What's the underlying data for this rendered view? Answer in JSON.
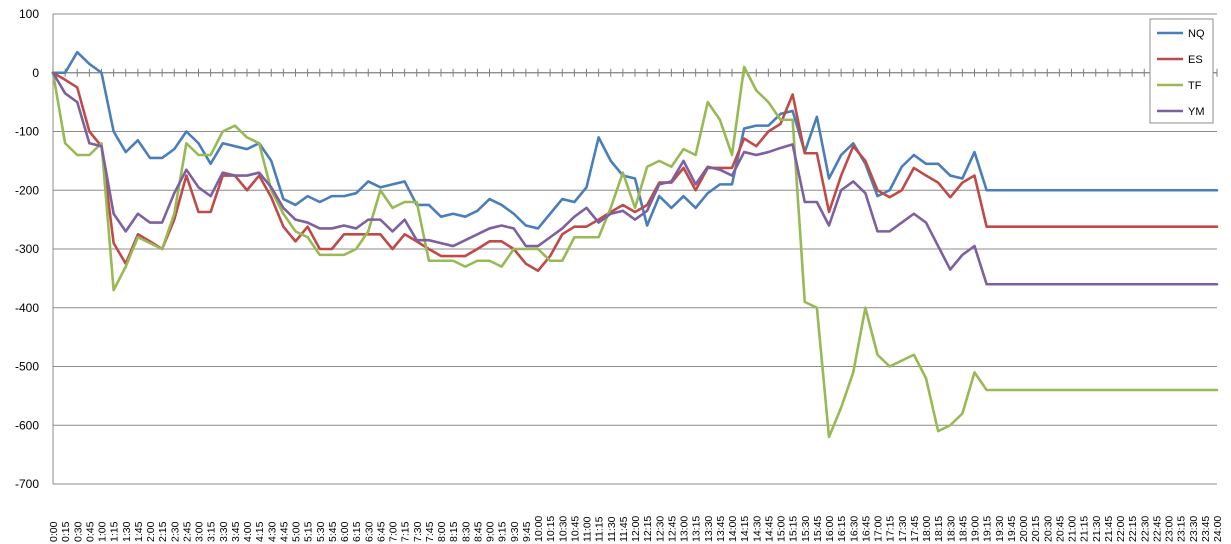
{
  "chart_data": {
    "type": "line",
    "title": "",
    "xlabel": "",
    "ylabel": "",
    "ylim": [
      -700,
      100
    ],
    "yticks": [
      100,
      0,
      -100,
      -200,
      -300,
      -400,
      -500,
      -600,
      -700
    ],
    "grid": "horizontal",
    "legend_position": "top-right",
    "x": [
      "0:00",
      "0:15",
      "0:30",
      "0:45",
      "1:00",
      "1:15",
      "1:30",
      "1:45",
      "2:00",
      "2:15",
      "2:30",
      "2:45",
      "3:00",
      "3:15",
      "3:30",
      "3:45",
      "4:00",
      "4:15",
      "4:30",
      "4:45",
      "5:00",
      "5:15",
      "5:30",
      "5:45",
      "6:00",
      "6:15",
      "6:30",
      "6:45",
      "7:00",
      "7:15",
      "7:30",
      "7:45",
      "8:00",
      "8:15",
      "8:30",
      "8:45",
      "9:00",
      "9:15",
      "9:30",
      "9:45",
      "10:00",
      "10:15",
      "10:30",
      "10:45",
      "11:00",
      "11:15",
      "11:30",
      "11:45",
      "12:00",
      "12:15",
      "12:30",
      "12:45",
      "13:00",
      "13:15",
      "13:30",
      "13:45",
      "14:00",
      "14:15",
      "14:30",
      "14:45",
      "15:00",
      "15:15",
      "15:30",
      "15:45",
      "16:00",
      "16:15",
      "16:30",
      "16:45",
      "17:00",
      "17:15",
      "17:30",
      "17:45",
      "18:00",
      "18:15",
      "18:30",
      "18:45",
      "19:00",
      "19:15",
      "19:30",
      "19:45",
      "20:00",
      "20:15",
      "20:30",
      "20:45",
      "21:00",
      "21:15",
      "21:30",
      "21:45",
      "22:00",
      "22:15",
      "22:30",
      "22:45",
      "23:00",
      "23:15",
      "23:30",
      "23:45",
      "24:00"
    ],
    "series": [
      {
        "name": "NQ",
        "color": "#4A7EBB",
        "values": [
          0,
          0,
          35,
          15,
          0,
          -100,
          -135,
          -115,
          -145,
          -145,
          -130,
          -100,
          -120,
          -155,
          -120,
          -125,
          -130,
          -120,
          -150,
          -215,
          -225,
          -210,
          -220,
          -210,
          -210,
          -205,
          -185,
          -195,
          -190,
          -185,
          -225,
          -225,
          -245,
          -240,
          -245,
          -235,
          -215,
          -225,
          -240,
          -260,
          -265,
          -240,
          -215,
          -220,
          -195,
          -110,
          -150,
          -175,
          -180,
          -260,
          -210,
          -230,
          -210,
          -230,
          -205,
          -190,
          -190,
          -95,
          -90,
          -90,
          -70,
          -65,
          -135,
          -75,
          -180,
          -140,
          -120,
          -155,
          -210,
          -200,
          -160,
          -140,
          -155,
          -155,
          -175,
          -180,
          -135,
          -200,
          -200,
          -200,
          -200,
          -200,
          -200,
          -200,
          -200,
          -200,
          -200,
          -200,
          -200,
          -200,
          -200,
          -200,
          -200,
          -200,
          -200,
          -200,
          -200
        ]
      },
      {
        "name": "ES",
        "color": "#BE4B48",
        "values": [
          0,
          -12,
          -25,
          -100,
          -125,
          -290,
          -325,
          -275,
          -287,
          -300,
          -250,
          -175,
          -237,
          -237,
          -175,
          -175,
          -200,
          -175,
          -212,
          -262,
          -287,
          -262,
          -300,
          -300,
          -275,
          -275,
          -275,
          -275,
          -300,
          -275,
          -287,
          -300,
          -312,
          -312,
          -312,
          -300,
          -287,
          -287,
          -300,
          -325,
          -337,
          -312,
          -275,
          -262,
          -262,
          -250,
          -237,
          -225,
          -237,
          -225,
          -187,
          -187,
          -162,
          -200,
          -162,
          -162,
          -162,
          -112,
          -125,
          -100,
          -87,
          -37,
          -137,
          -137,
          -237,
          -175,
          -125,
          -150,
          -200,
          -212,
          -200,
          -162,
          -175,
          -187,
          -212,
          -187,
          -175,
          -262,
          -262,
          -262,
          -262,
          -262,
          -262,
          -262,
          -262,
          -262,
          -262,
          -262,
          -262,
          -262,
          -262,
          -262,
          -262,
          -262,
          -262,
          -262,
          -262
        ]
      },
      {
        "name": "TF",
        "color": "#98B954",
        "values": [
          0,
          -120,
          -140,
          -140,
          -120,
          -370,
          -330,
          -280,
          -290,
          -300,
          -240,
          -120,
          -140,
          -140,
          -100,
          -90,
          -110,
          -120,
          -200,
          -240,
          -270,
          -280,
          -310,
          -310,
          -310,
          -300,
          -270,
          -200,
          -230,
          -220,
          -220,
          -320,
          -320,
          -320,
          -330,
          -320,
          -320,
          -330,
          -300,
          -300,
          -300,
          -320,
          -320,
          -280,
          -280,
          -280,
          -230,
          -170,
          -230,
          -160,
          -150,
          -160,
          -130,
          -140,
          -50,
          -80,
          -140,
          10,
          -30,
          -50,
          -80,
          -80,
          -390,
          -400,
          -620,
          -570,
          -510,
          -400,
          -480,
          -500,
          -490,
          -480,
          -520,
          -610,
          -600,
          -580,
          -510,
          -540,
          -540,
          -540,
          -540,
          -540,
          -540,
          -540,
          -540,
          -540,
          -540,
          -540,
          -540,
          -540,
          -540,
          -540,
          -540,
          -540,
          -540,
          -540,
          -540
        ]
      },
      {
        "name": "YM",
        "color": "#7D60A0",
        "values": [
          0,
          -35,
          -50,
          -120,
          -125,
          -240,
          -270,
          -240,
          -255,
          -255,
          -205,
          -165,
          -195,
          -210,
          -170,
          -175,
          -175,
          -170,
          -195,
          -230,
          -250,
          -255,
          -265,
          -265,
          -260,
          -265,
          -250,
          -250,
          -270,
          -250,
          -285,
          -285,
          -290,
          -295,
          -285,
          -275,
          -265,
          -260,
          -265,
          -295,
          -295,
          -280,
          -265,
          -245,
          -230,
          -255,
          -240,
          -235,
          -250,
          -235,
          -190,
          -185,
          -150,
          -190,
          -160,
          -165,
          -175,
          -135,
          -140,
          -135,
          -128,
          -122,
          -220,
          -220,
          -260,
          -200,
          -185,
          -205,
          -270,
          -270,
          -255,
          -240,
          -255,
          -295,
          -335,
          -310,
          -295,
          -360,
          -360,
          -360,
          -360,
          -360,
          -360,
          -360,
          -360,
          -360,
          -360,
          -360,
          -360,
          -360,
          -360,
          -360,
          -360,
          -360,
          -360,
          -360,
          -360
        ]
      }
    ]
  }
}
